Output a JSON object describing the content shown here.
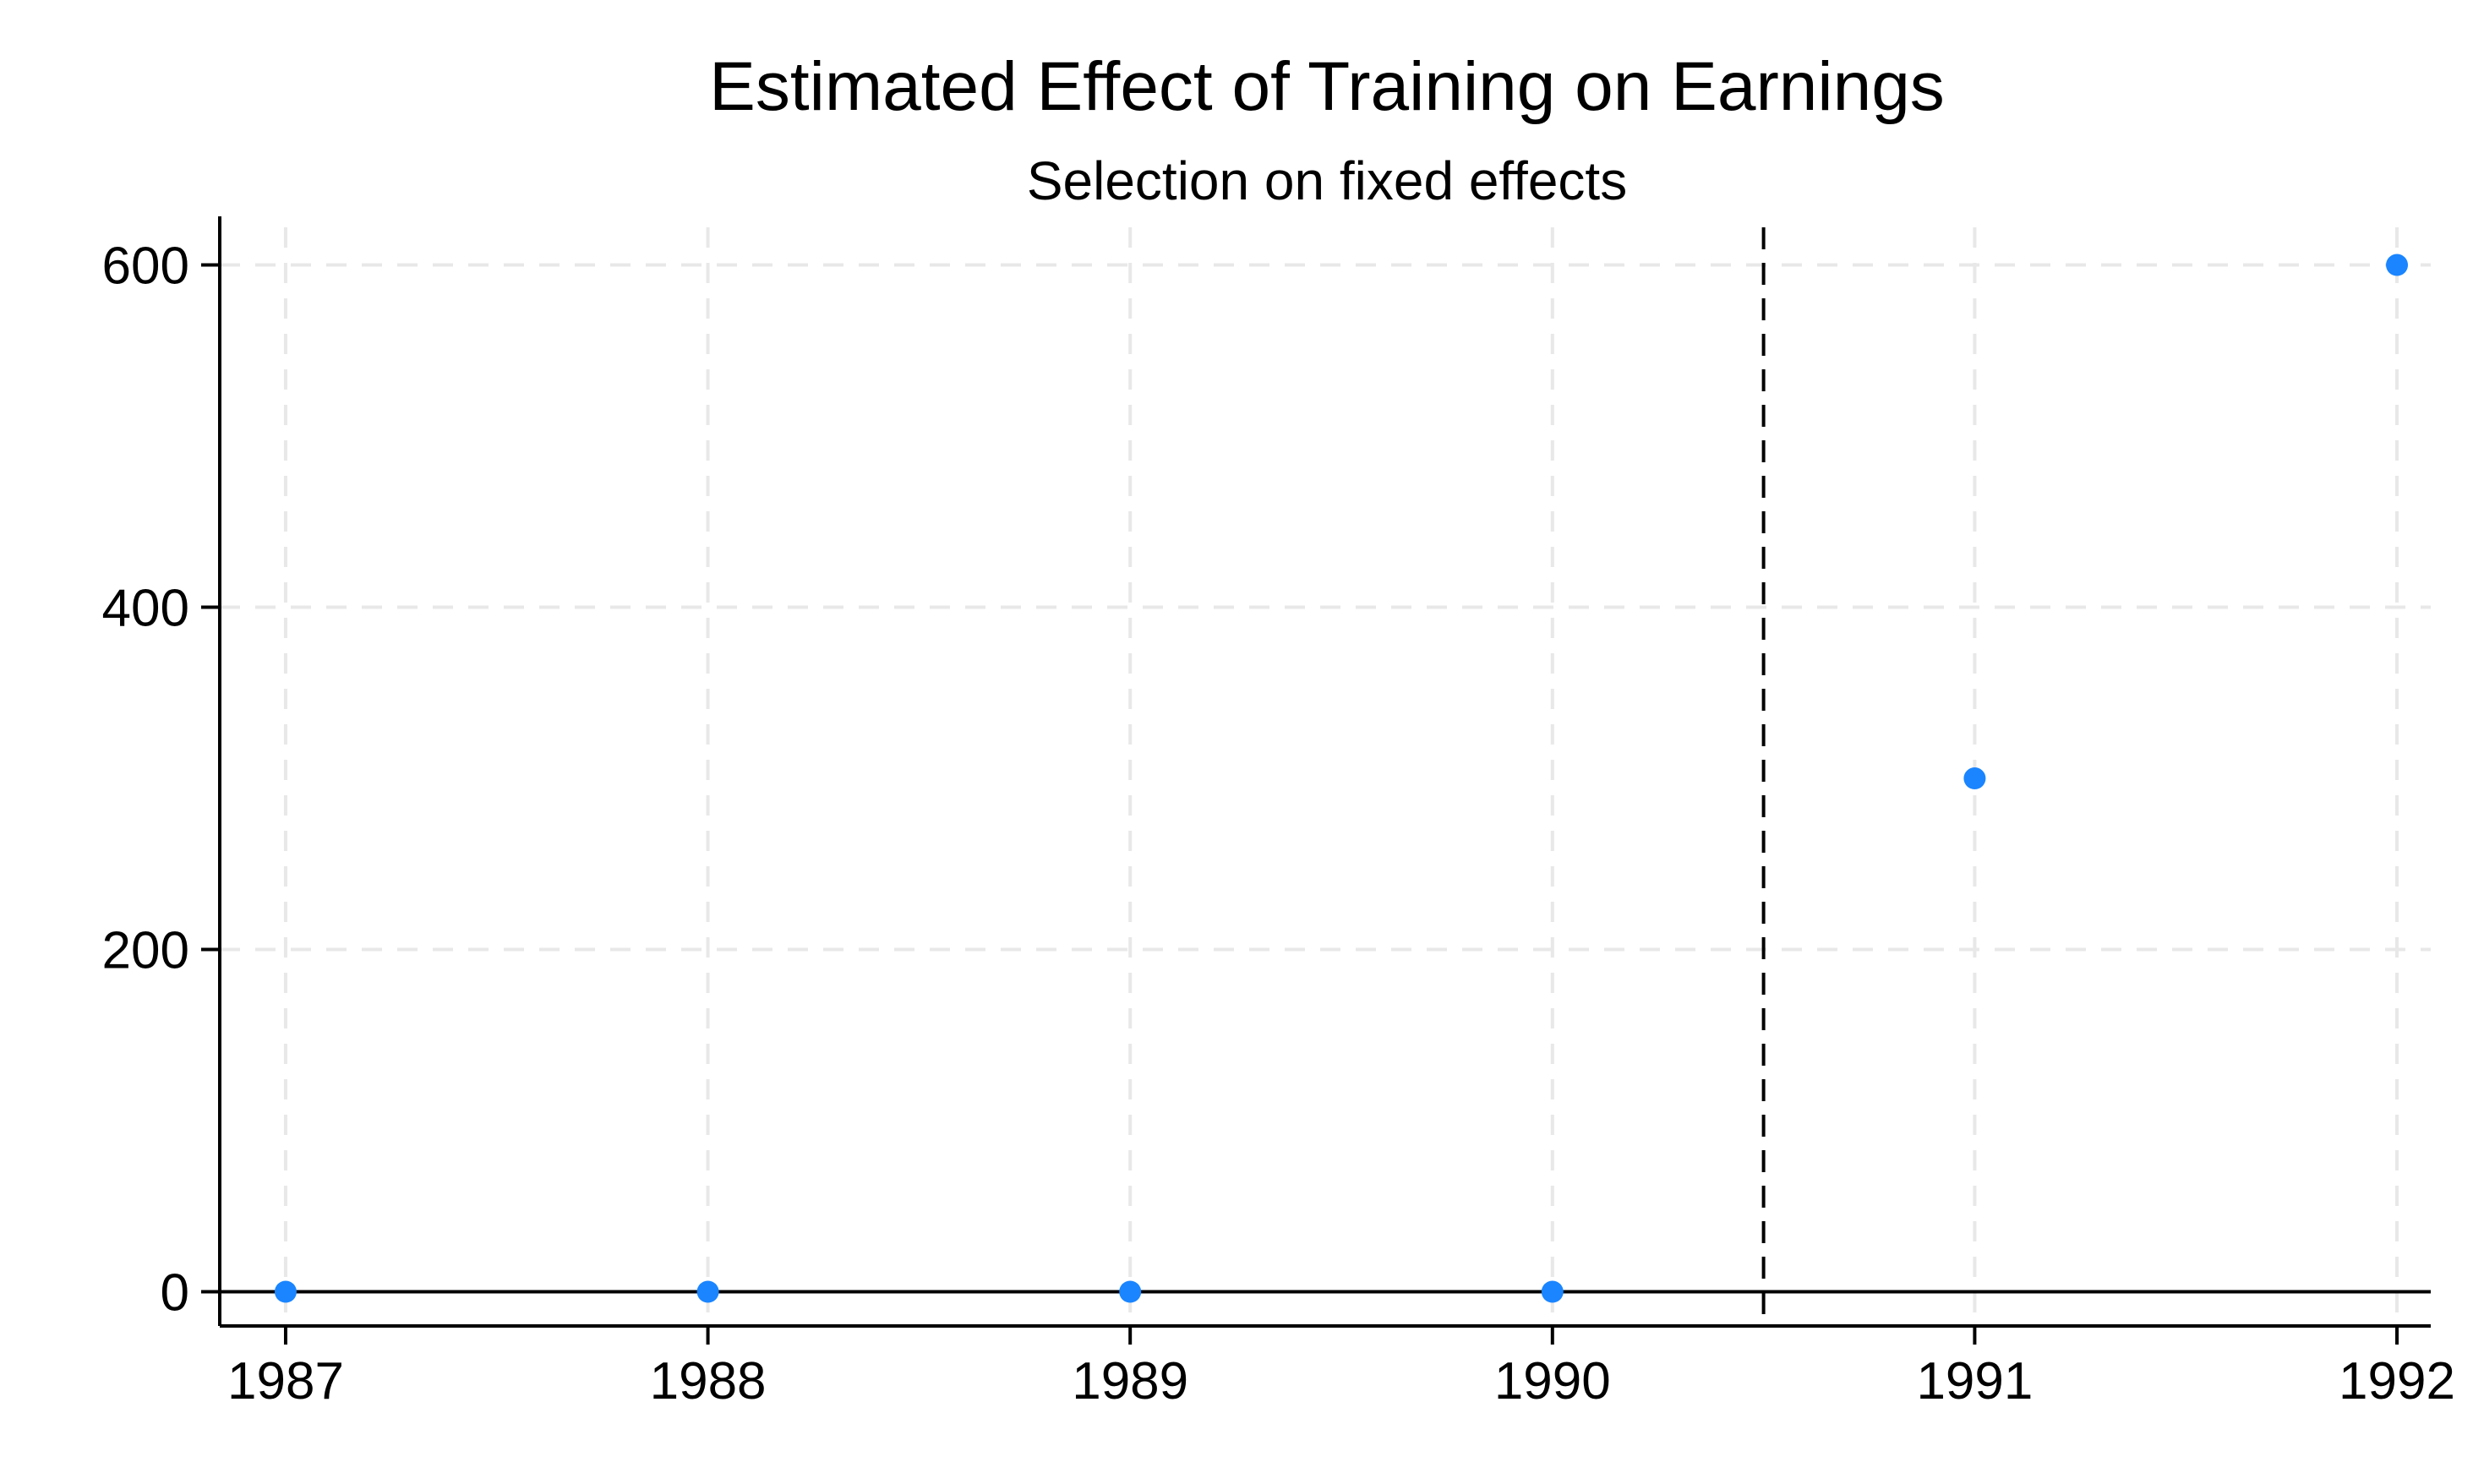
{
  "chart_data": {
    "type": "scatter",
    "title": "Estimated Effect of Training on Earnings",
    "subtitle": "Selection on fixed effects",
    "xlabel": "",
    "ylabel": "",
    "x_ticks": [
      1987,
      1988,
      1989,
      1990,
      1991,
      1992
    ],
    "y_ticks": [
      0,
      200,
      400,
      600
    ],
    "xlim": [
      1986.92,
      1992.08
    ],
    "ylim": [
      -20,
      622
    ],
    "grid": true,
    "legend": "none",
    "reference_lines": {
      "horizontal_y": 0,
      "vertical_x": 1990.5
    },
    "series": [
      {
        "x": [
          1987,
          1988,
          1989,
          1990,
          1991,
          1992
        ],
        "y": [
          0,
          0,
          0,
          0,
          300,
          600
        ]
      }
    ],
    "colors": {
      "marker": "#1a85ff",
      "grid": "#e8e8e8",
      "axis": "#000000",
      "ref_line": "#000000"
    }
  }
}
